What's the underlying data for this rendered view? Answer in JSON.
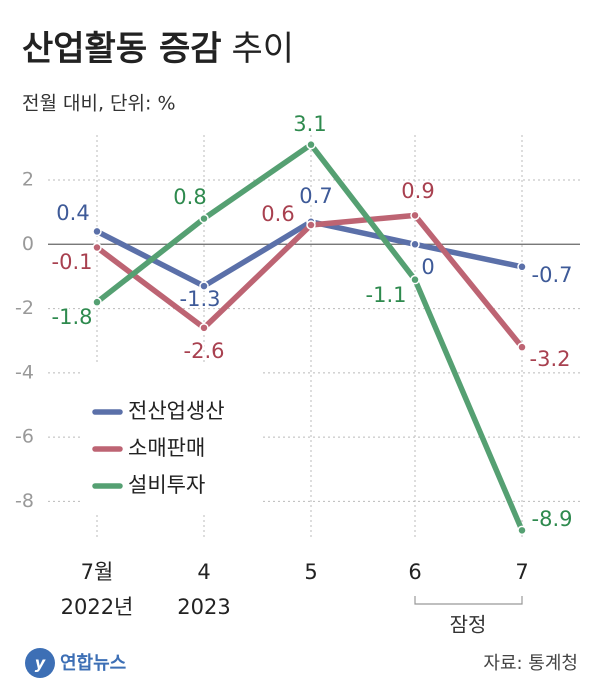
{
  "chart_data": {
    "type": "line",
    "title": "산업활동 증감",
    "title_suffix": "추이",
    "subtitle": "전월 대비, 단위: %",
    "categories": [
      "7월",
      "4",
      "5",
      "6",
      "7"
    ],
    "year_labels": [
      "2022년",
      "2023",
      null,
      null,
      null
    ],
    "series": [
      {
        "name": "전산업생산",
        "color": "#5b70a9",
        "label_color": "#3e5a98",
        "values": [
          0.4,
          -1.3,
          0.7,
          0,
          -0.7
        ]
      },
      {
        "name": "소매판매",
        "color": "#bd6473",
        "label_color": "#a8404f",
        "values": [
          -0.1,
          -2.6,
          0.6,
          0.9,
          -3.2
        ]
      },
      {
        "name": "설비투자",
        "color": "#55a072",
        "label_color": "#2e8a4e",
        "values": [
          -1.8,
          0.8,
          3.1,
          -1.1,
          -8.9
        ]
      }
    ],
    "ylim": [
      -9.2,
      3.4
    ],
    "yticks": [
      2,
      0,
      -2,
      -4,
      -6,
      -8
    ],
    "grid": true,
    "annotation": "잠정",
    "source": "자료: 통계청",
    "logo": "연합뉴스"
  }
}
